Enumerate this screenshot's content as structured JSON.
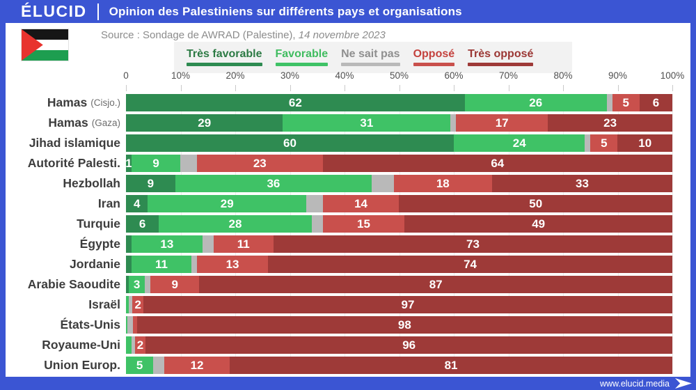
{
  "header": {
    "logo": "ÉLUCID",
    "title": "Opinion des Palestiniens sur différents pays et organisations"
  },
  "source": {
    "prefix": "Source : Sondage de AWRAD (Palestine), ",
    "date": "14 novembre 2023"
  },
  "footer": {
    "url": "www.elucid.media"
  },
  "colors": {
    "frame_blue": "#3b55d3",
    "legend_bg": "#f2f2f2",
    "flag_red": "#e8332e",
    "flag_green": "#1d9e50",
    "flag_black": "#161616"
  },
  "chart_data": {
    "type": "bar",
    "stacked": true,
    "orientation": "horizontal",
    "title": "Opinion des Palestiniens sur différents pays et organisations",
    "xlim": [
      0,
      100
    ],
    "x_ticks": [
      "0",
      "10%",
      "20%",
      "30%",
      "40%",
      "50%",
      "60%",
      "70%",
      "80%",
      "90%",
      "100%"
    ],
    "grid": true,
    "legend_position": "top",
    "series_names": [
      "Très favorable",
      "Favorable",
      "Ne sait pas",
      "Opposé",
      "Très opposé"
    ],
    "series_colors": [
      "#2e8b51",
      "#3fc266",
      "#b9b9b9",
      "#c9504c",
      "#9e3a38"
    ],
    "legend_text_colors": [
      "#2c7a44",
      "#3fbc5f",
      "#8f8f8f",
      "#c4423e",
      "#9b3734"
    ],
    "rows": [
      {
        "label": "Hamas",
        "sublabel": "(Cisjo.)",
        "values": [
          62,
          26,
          1,
          5,
          6
        ],
        "value_labels": [
          "62",
          "26",
          "",
          "5",
          "6"
        ]
      },
      {
        "label": "Hamas",
        "sublabel": "(Gaza)",
        "values": [
          29,
          31,
          1,
          17,
          23
        ],
        "value_labels": [
          "29",
          "31",
          "",
          "17",
          "23"
        ]
      },
      {
        "label": "Jihad islamique",
        "sublabel": "",
        "values": [
          60,
          24,
          1,
          5,
          10
        ],
        "value_labels": [
          "60",
          "24",
          "",
          "5",
          "10"
        ]
      },
      {
        "label": "Autorité Palesti.",
        "sublabel": "",
        "values": [
          1,
          9,
          3,
          23,
          64
        ],
        "value_labels": [
          "1",
          "9",
          "",
          "23",
          "64"
        ]
      },
      {
        "label": "Hezbollah",
        "sublabel": "",
        "values": [
          9,
          36,
          4,
          18,
          33
        ],
        "value_labels": [
          "9",
          "36",
          "",
          "18",
          "33"
        ]
      },
      {
        "label": "Iran",
        "sublabel": "",
        "values": [
          4,
          29,
          3,
          14,
          50
        ],
        "value_labels": [
          "4",
          "29",
          "",
          "14",
          "50"
        ]
      },
      {
        "label": "Turquie",
        "sublabel": "",
        "values": [
          6,
          28,
          2,
          15,
          49
        ],
        "value_labels": [
          "6",
          "28",
          "",
          "15",
          "49"
        ]
      },
      {
        "label": "Égypte",
        "sublabel": "",
        "values": [
          1,
          13,
          2,
          11,
          73
        ],
        "value_labels": [
          "",
          "13",
          "",
          "11",
          "73"
        ]
      },
      {
        "label": "Jordanie",
        "sublabel": "",
        "values": [
          1,
          11,
          1,
          13,
          74
        ],
        "value_labels": [
          "",
          "11",
          "",
          "13",
          "74"
        ]
      },
      {
        "label": "Arabie Saoudite",
        "sublabel": "",
        "values": [
          0.5,
          3,
          1,
          9,
          87
        ],
        "value_labels": [
          "",
          "3",
          "",
          "9",
          "87"
        ]
      },
      {
        "label": "Israël",
        "sublabel": "",
        "values": [
          0,
          0.5,
          0.7,
          2,
          97
        ],
        "value_labels": [
          "",
          "",
          "",
          "2",
          "97"
        ]
      },
      {
        "label": "États-Unis",
        "sublabel": "",
        "values": [
          0,
          0.3,
          1,
          0.7,
          98
        ],
        "value_labels": [
          "",
          "",
          "",
          "",
          "98"
        ]
      },
      {
        "label": "Royaume-Uni",
        "sublabel": "",
        "values": [
          0,
          1,
          0.6,
          2,
          96
        ],
        "value_labels": [
          "",
          "",
          "",
          "2",
          "96"
        ]
      },
      {
        "label": "Union Europ.",
        "sublabel": "",
        "values": [
          0,
          5,
          2,
          12,
          81
        ],
        "value_labels": [
          "",
          "5",
          "",
          "12",
          "81"
        ]
      }
    ]
  }
}
